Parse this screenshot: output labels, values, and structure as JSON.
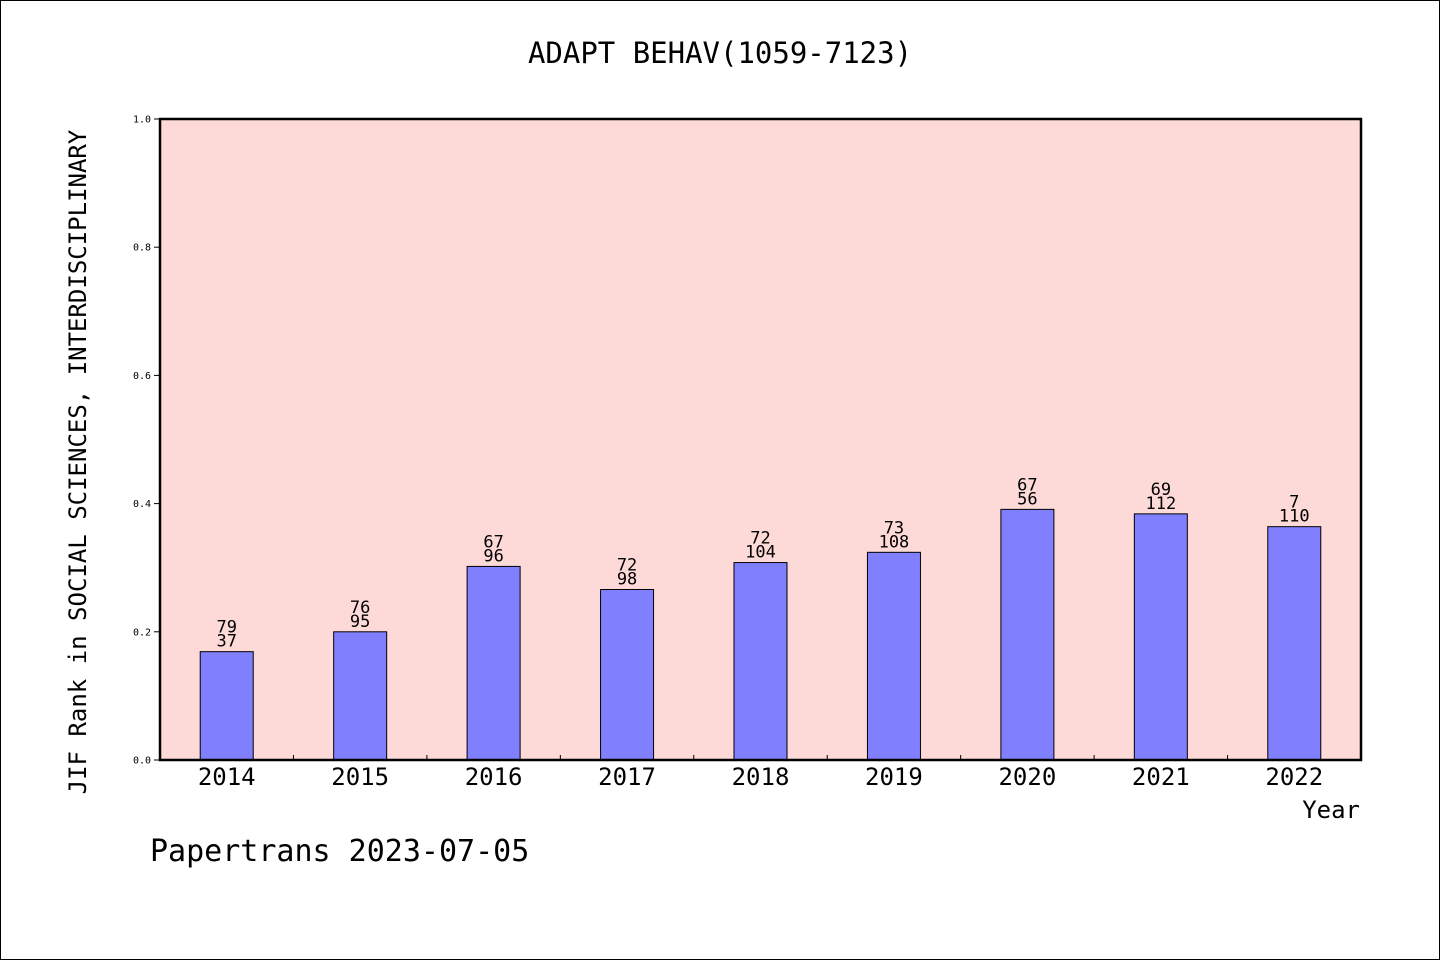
{
  "title": "ADAPT BEHAV(1059-7123)",
  "footer": "Papertrans 2023-07-05",
  "colors": {
    "plot_background": "#fddad7",
    "bar_fill": "#8080ff",
    "bar_stroke": "#000000"
  },
  "chart_data": {
    "type": "bar",
    "categories": [
      "2014",
      "2015",
      "2016",
      "2017",
      "2018",
      "2019",
      "2020",
      "2021",
      "2022"
    ],
    "values": [
      0.169,
      0.2,
      0.302,
      0.266,
      0.308,
      0.324,
      0.391,
      0.384,
      0.364
    ],
    "labels_top": [
      "79",
      "76",
      "67",
      "72",
      "72",
      "73",
      "67",
      "69",
      "7"
    ],
    "labels_bottom": [
      "37",
      "95",
      "96",
      "98",
      "104",
      "108",
      "56",
      "112",
      "110"
    ],
    "xlabel": "Year",
    "ylabel": "JIF Rank in SOCIAL SCIENCES, INTERDISCIPLINARY",
    "ylim": [
      0,
      1.0
    ],
    "yticks": [
      "0.0",
      "0.2",
      "0.4",
      "0.6",
      "0.8",
      "1.0"
    ],
    "grid": false,
    "legend": false
  }
}
